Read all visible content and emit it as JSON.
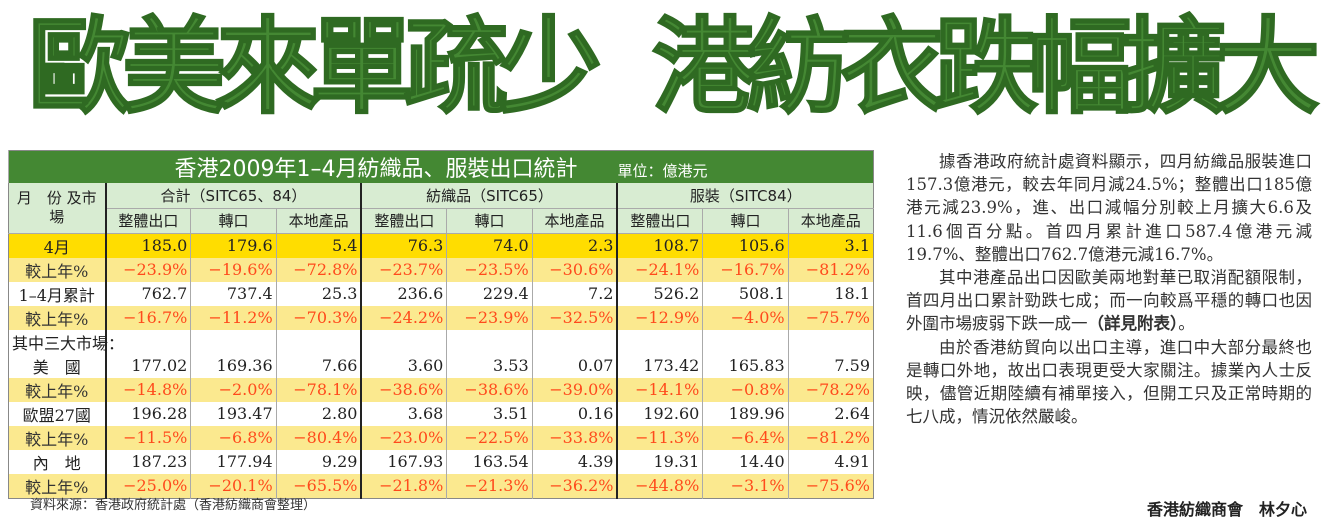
{
  "headline": {
    "part1": "歐美來單疏少",
    "part2": "港紡衣跌幅擴大"
  },
  "table": {
    "title": "香港2009年1–4月紡織品、服裝出口統計",
    "unit": "單位：億港元",
    "row_header": "月　份 及市場",
    "groups": [
      "合計（SITC65、84）",
      "紡織品（SITC65）",
      "服裝（SITC84）"
    ],
    "subcols": [
      "整體出口",
      "轉口",
      "本地產品"
    ],
    "rows": [
      {
        "label": "4月",
        "type": "yel",
        "values": [
          "185.0",
          "179.6",
          "5.4",
          "76.3",
          "74.0",
          "2.3",
          "108.7",
          "105.6",
          "3.1"
        ]
      },
      {
        "label": "較上年%",
        "type": "pct",
        "values": [
          "−23.9%",
          "−19.6%",
          "−72.8%",
          "−23.7%",
          "−23.5%",
          "−30.6%",
          "−24.1%",
          "−16.7%",
          "−81.2%"
        ]
      },
      {
        "label": "1–4月累計",
        "type": "norm",
        "values": [
          "762.7",
          "737.4",
          "25.3",
          "236.6",
          "229.4",
          "7.2",
          "526.2",
          "508.1",
          "18.1"
        ]
      },
      {
        "label": "較上年%",
        "type": "pct",
        "values": [
          "−16.7%",
          "−11.2%",
          "−70.3%",
          "−24.2%",
          "−23.9%",
          "−32.5%",
          "−12.9%",
          "−4.0%",
          "−75.7%"
        ]
      },
      {
        "label": "其中三大市場：",
        "type": "sec",
        "values": [
          "",
          "",
          "",
          "",
          "",
          "",
          "",
          "",
          ""
        ]
      },
      {
        "label": "美　國",
        "type": "norm",
        "values": [
          "177.02",
          "169.36",
          "7.66",
          "3.60",
          "3.53",
          "0.07",
          "173.42",
          "165.83",
          "7.59"
        ]
      },
      {
        "label": "較上年%",
        "type": "pct",
        "values": [
          "−14.8%",
          "−2.0%",
          "−78.1%",
          "−38.6%",
          "−38.6%",
          "−39.0%",
          "−14.1%",
          "−0.8%",
          "−78.2%"
        ]
      },
      {
        "label": "歐盟27國",
        "type": "norm",
        "values": [
          "196.28",
          "193.47",
          "2.80",
          "3.68",
          "3.51",
          "0.16",
          "192.60",
          "189.96",
          "2.64"
        ]
      },
      {
        "label": "較上年%",
        "type": "pct",
        "values": [
          "−11.5%",
          "−6.8%",
          "−80.4%",
          "−23.0%",
          "−22.5%",
          "−33.8%",
          "−11.3%",
          "−6.4%",
          "−81.2%"
        ]
      },
      {
        "label": "內　地",
        "type": "norm",
        "values": [
          "187.23",
          "177.94",
          "9.29",
          "167.93",
          "163.54",
          "4.39",
          "19.31",
          "14.40",
          "4.91"
        ]
      },
      {
        "label": "較上年%",
        "type": "pct",
        "values": [
          "−25.0%",
          "−20.1%",
          "−65.5%",
          "−21.8%",
          "−21.3%",
          "−36.2%",
          "−44.8%",
          "−3.1%",
          "−75.6%"
        ]
      }
    ]
  },
  "source": "資料來源：香港政府統計處（香港紡織商會整理）",
  "article": {
    "p1": "據香港政府統計處資料顯示，四月紡織品服裝進口157.3億港元，較去年同月減24.5%；整體出口185億港元減23.9%，進、出口減幅分別較上月擴大6.6及11.6個百分點。首四月累計進口587.4億港元減19.7%、整體出口762.7億港元減16.7%。",
    "p2": "其中港產品出口因歐美兩地對華已取消配額限制，首四月出口累計勁跌七成；而一向較爲平穩的轉口也因外圍市場疲弱下跌一成一",
    "p2_bold": "（詳見附表）",
    "p2_end": "。",
    "p3": "由於香港紡貿向以出口主導，進口中大部分最終也是轉口外地，故出口表現更受大家關注。據業內人士反映，儘管近期陸續有補單接入，但開工只及正常時期的七八成，情況依然嚴峻。",
    "byline": "香港紡織商會　林夕心"
  },
  "colors": {
    "green": "#448833",
    "yellow": "#ffdd00",
    "pale_yellow": "#fbe98f",
    "red": "#ff4a1c"
  }
}
